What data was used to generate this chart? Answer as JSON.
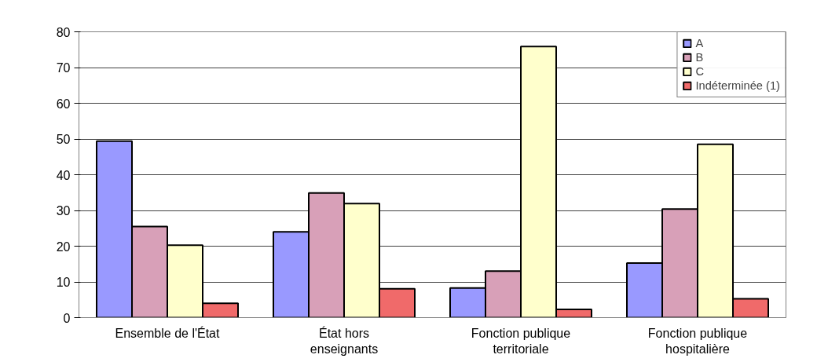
{
  "chart_data": {
    "type": "bar",
    "categories": [
      "Ensemble de l'État",
      "État hors enseignants",
      "Fonction publique territoriale",
      "Fonction publique hospitalière"
    ],
    "series": [
      {
        "name": "A",
        "color": "#9999ff",
        "values": [
          49.4,
          24.0,
          8.3,
          15.3
        ]
      },
      {
        "name": "B",
        "color": "#d8a0b8",
        "values": [
          25.5,
          34.9,
          13.0,
          30.4
        ]
      },
      {
        "name": "C",
        "color": "#ffffcc",
        "values": [
          20.3,
          31.9,
          75.9,
          48.5
        ]
      },
      {
        "name": "Indéterminée (1)",
        "color": "#f06a6a",
        "values": [
          4.0,
          8.1,
          2.3,
          5.3
        ]
      }
    ],
    "ylim": [
      0,
      80
    ],
    "yticks": [
      0,
      10,
      20,
      30,
      40,
      50,
      60,
      70,
      80
    ],
    "grid": "y",
    "legend": "top right"
  }
}
